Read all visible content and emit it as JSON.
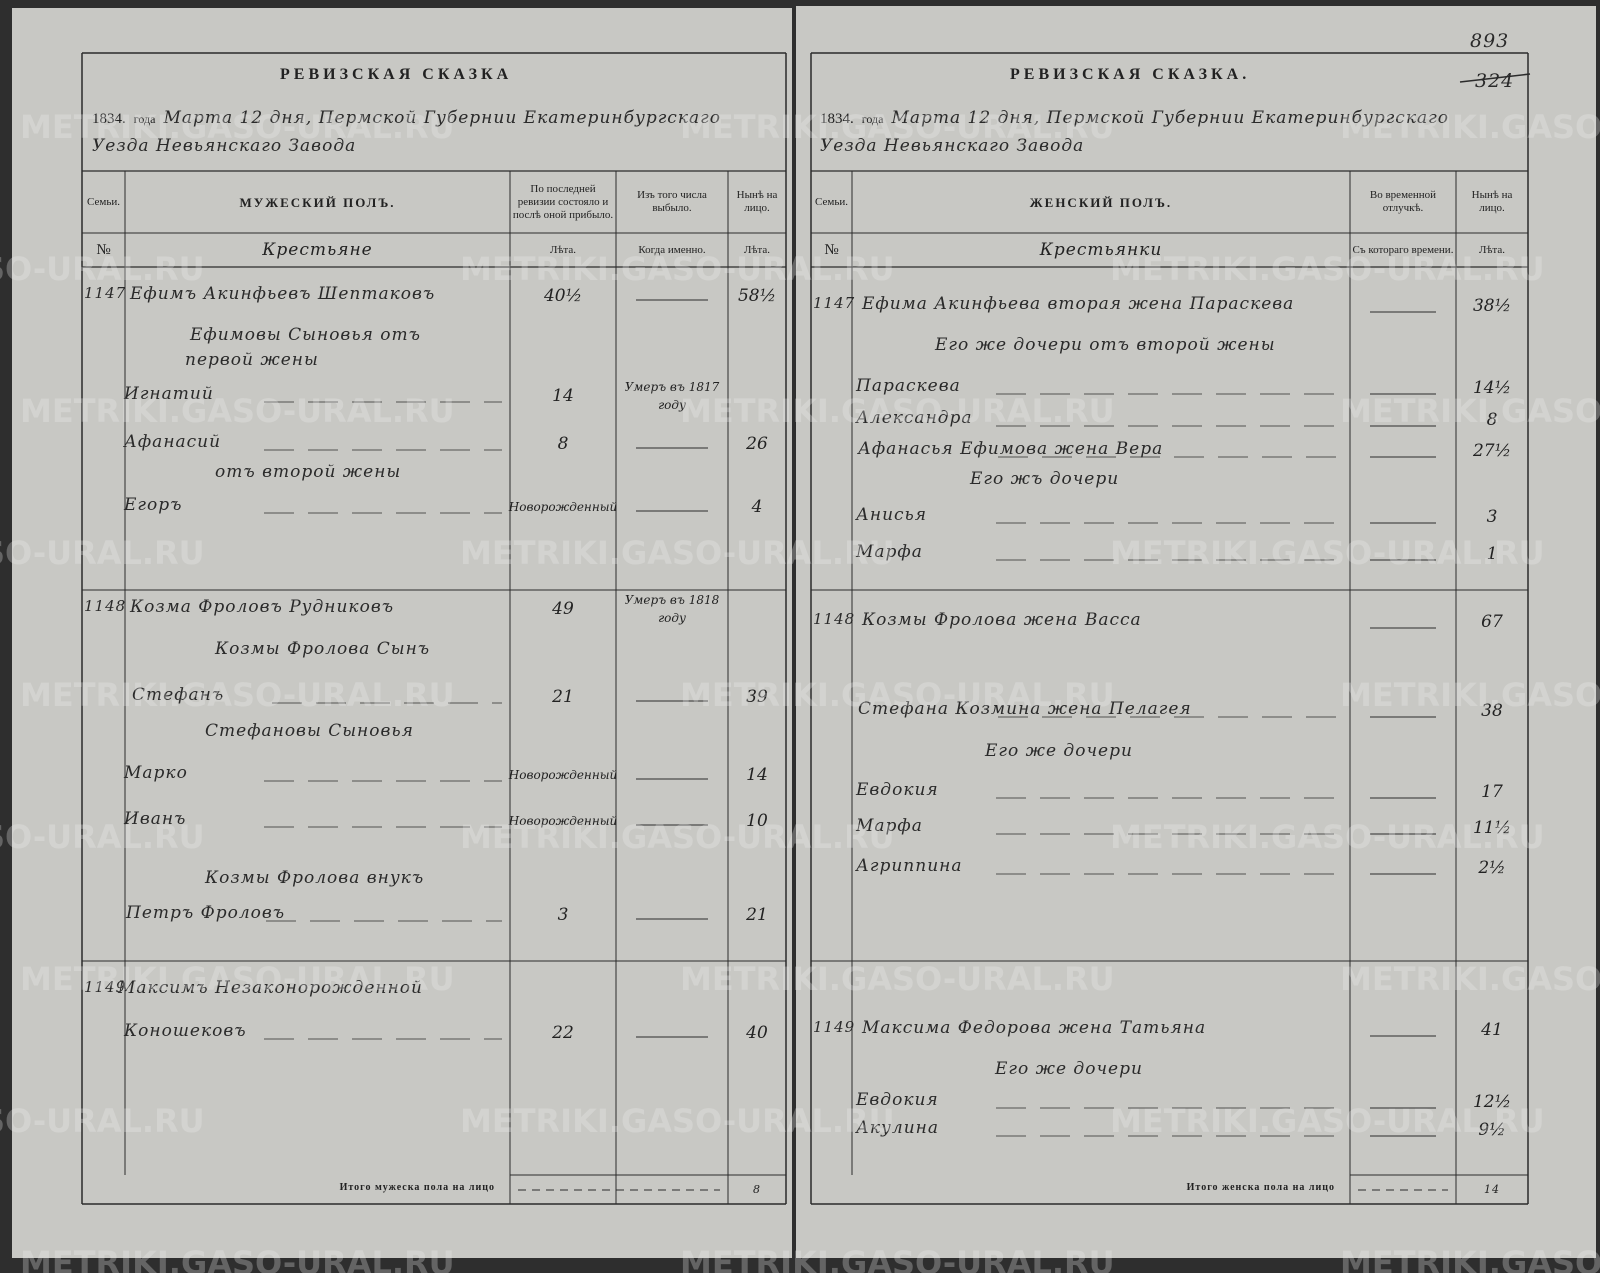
{
  "watermark": "METRIKI.GASO-URAL.RU",
  "left_page": {
    "title": "РЕВИЗСКАЯ СКАЗКА",
    "year": "1834.",
    "year_word": "года",
    "date_text": "Марта 12 дня, Пермской Губернии Екатеринбургскаго",
    "date_text_2": "Уезда Невьянскаго Завода",
    "columns": [
      "Семьи.",
      "МУЖЕСКИЙ ПОЛЪ.",
      "По последней ревизии состояло и послѣ оной прибыло.",
      "Изъ того числа выбыло.",
      "Нынѣ на лицо."
    ],
    "subheaders": [
      "№",
      "Крестьяне",
      "Лѣта.",
      "Когда именно.",
      "Лѣта."
    ],
    "rows": [
      {
        "family": "1147",
        "name": "Ефимъ Акинфьевъ Шептаковъ",
        "age": "40½",
        "now": "58½"
      },
      {
        "name": "Ефимовы Сыновья отъ"
      },
      {
        "name": "первой жены"
      },
      {
        "name": "Игнатий",
        "age": "14",
        "when": "Умеръ въ 1817 году"
      },
      {
        "name": "Афанасий",
        "age": "8",
        "now": "26"
      },
      {
        "name": "отъ второй жены"
      },
      {
        "name": "Егоръ",
        "age": "Новорожденный",
        "now": "4"
      },
      {
        "family": "1148",
        "name": "Козма Фроловъ Рудниковъ",
        "age": "49",
        "when": "Умеръ въ 1818 году"
      },
      {
        "name": "Козмы Фролова Сынъ"
      },
      {
        "name": "Стефанъ",
        "age": "21",
        "now": "39"
      },
      {
        "name": "Стефановы Сыновья"
      },
      {
        "name": "Марко",
        "age": "Новорожденный",
        "now": "14"
      },
      {
        "name": "Иванъ",
        "age": "Новорожденный",
        "now": "10"
      },
      {
        "name": "Козмы Фролова внукъ"
      },
      {
        "name": "Петръ Фроловъ",
        "age": "3",
        "now": "21"
      },
      {
        "family": "1149",
        "name": "Максимъ Незаконорожденной"
      },
      {
        "name": "Коношековъ",
        "age": "22",
        "now": "40"
      }
    ],
    "total_label": "Итого мужеска пола на лицо",
    "total_value": "8"
  },
  "right_page": {
    "page_number": "893",
    "old_page_number": "324",
    "title": "РЕВИЗСКАЯ СКАЗКА.",
    "year": "1834.",
    "year_word": "года",
    "date_text": "Марта 12 дня, Пермской Губернии Екатеринбургскаго",
    "date_text_2": "Уезда Невьянскаго Завода",
    "columns": [
      "Семьи.",
      "ЖЕНСКИЙ ПОЛЪ.",
      "Во временной отлучкѣ.",
      "Нынѣ на лицо."
    ],
    "subheaders": [
      "№",
      "Крестьянки",
      "Съ котораго времени.",
      "Лѣта."
    ],
    "rows": [
      {
        "family": "1147",
        "name": "Ефима Акинфьева вторая жена Параскева",
        "now": "38½"
      },
      {
        "name": "Его же дочери отъ второй жены"
      },
      {
        "name": "Параскева",
        "now": "14½"
      },
      {
        "name": "Александра",
        "now": "8"
      },
      {
        "name": "Афанасья Ефимова жена Вера",
        "now": "27½"
      },
      {
        "name": "Его жъ дочери"
      },
      {
        "name": "Анисья",
        "now": "3"
      },
      {
        "name": "Марфа",
        "now": "1"
      },
      {
        "family": "1148",
        "name": "Козмы Фролова жена Васса",
        "now": "67"
      },
      {
        "name": "Стефана Козмина жена Пелагея",
        "now": "38"
      },
      {
        "name": "Его же дочери"
      },
      {
        "name": "Евдокия",
        "now": "17"
      },
      {
        "name": "Марфа",
        "now": "11½"
      },
      {
        "name": "Агриппина",
        "now": "2½"
      },
      {
        "family": "1149",
        "name": "Максима Федорова жена Татьяна",
        "now": "41"
      },
      {
        "name": "Его же дочери"
      },
      {
        "name": "Евдокия",
        "now": "12½"
      },
      {
        "name": "Акулина",
        "now": "9½"
      }
    ],
    "total_label": "Итого женска пола на лицо",
    "total_value": "14"
  }
}
